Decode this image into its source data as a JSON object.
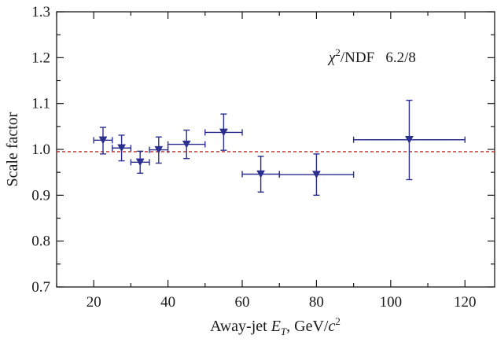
{
  "chart_data": {
    "type": "scatter",
    "xlabel": "Away-jet E_T, GeV/c^2",
    "ylabel": "Scale factor",
    "xlim": [
      10,
      128
    ],
    "ylim": [
      0.7,
      1.3
    ],
    "x_ticks": [
      20,
      40,
      60,
      80,
      100,
      120
    ],
    "x_tick_labels": [
      "20",
      "40",
      "60",
      "80",
      "100",
      "120"
    ],
    "y_ticks": [
      0.7,
      0.8,
      0.9,
      1.0,
      1.1,
      1.2,
      1.3
    ],
    "y_tick_labels": [
      "0.7",
      "0.8",
      "0.9",
      "1.0",
      "1.1",
      "1.2",
      "1.3"
    ],
    "grid": false,
    "annotation": {
      "chi": "χ",
      "sup": "2",
      "rest": "/NDF   6.2/8"
    },
    "reference_line": {
      "y": 0.995,
      "style": "dashed",
      "color": "#c0302a"
    },
    "marker_color": "#2b2f8f",
    "points": [
      {
        "x": 22.5,
        "y": 1.02,
        "x_err": 2.5,
        "y_lo": 0.99,
        "y_hi": 1.048
      },
      {
        "x": 27.5,
        "y": 1.003,
        "x_err": 2.5,
        "y_lo": 0.975,
        "y_hi": 1.031
      },
      {
        "x": 32.5,
        "y": 0.972,
        "x_err": 2.5,
        "y_lo": 0.948,
        "y_hi": 0.996
      },
      {
        "x": 37.5,
        "y": 0.999,
        "x_err": 2.5,
        "y_lo": 0.97,
        "y_hi": 1.027
      },
      {
        "x": 45.0,
        "y": 1.011,
        "x_err": 5.0,
        "y_lo": 0.98,
        "y_hi": 1.042
      },
      {
        "x": 55.0,
        "y": 1.037,
        "x_err": 5.0,
        "y_lo": 0.998,
        "y_hi": 1.077
      },
      {
        "x": 65.0,
        "y": 0.946,
        "x_err": 5.0,
        "y_lo": 0.907,
        "y_hi": 0.985
      },
      {
        "x": 80.0,
        "y": 0.945,
        "x_err": 10.0,
        "y_lo": 0.9,
        "y_hi": 0.99
      },
      {
        "x": 105.0,
        "y": 1.021,
        "x_err": 15.0,
        "y_lo": 0.934,
        "y_hi": 1.107
      }
    ]
  }
}
